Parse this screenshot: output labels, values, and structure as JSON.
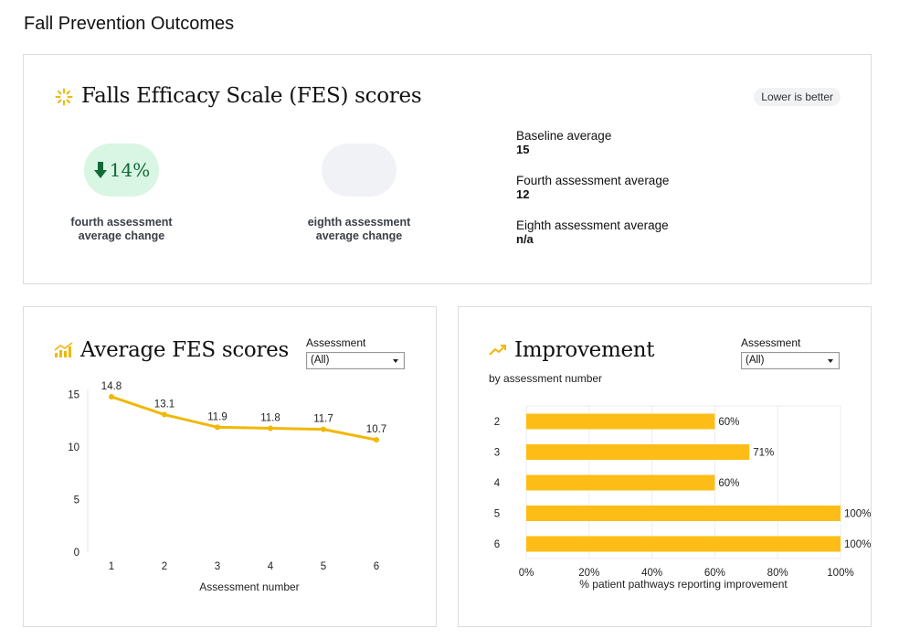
{
  "page": {
    "title": "Fall Prevention Outcomes"
  },
  "fes_card": {
    "heading": "Falls Efficacy Scale (FES) scores",
    "note": "Lower is better",
    "kpis": [
      {
        "value": "14%",
        "direction": "down",
        "caption_line1": "fourth assessment",
        "caption_line2": "average change"
      },
      {
        "value": "",
        "caption_line1": "eighth assessment",
        "caption_line2": "average change"
      }
    ],
    "stats": [
      {
        "label": "Baseline average",
        "value": "15"
      },
      {
        "label": "Fourth assessment average",
        "value": "12"
      },
      {
        "label": "Eighth assessment average",
        "value": "n/a"
      }
    ],
    "colors": {
      "accent": "#f2b705",
      "positive_bg": "#d9f5e3",
      "positive_text": "#0f6a37"
    }
  },
  "avg_card": {
    "heading": "Average FES scores",
    "filter_label": "Assessment",
    "filter_value": "(All)",
    "icon": "bar-chart-icon"
  },
  "imp_card": {
    "heading": "Improvement",
    "subtitle": "by assessment number",
    "filter_label": "Assessment",
    "filter_value": "(All)",
    "icon": "trend-up-icon"
  },
  "chart_data": [
    {
      "type": "line",
      "x": [
        1,
        2,
        3,
        4,
        5,
        6
      ],
      "values": [
        14.8,
        13.1,
        11.9,
        11.8,
        11.7,
        10.7
      ],
      "data_labels": [
        "14.8",
        "13.1",
        "11.9",
        "11.8",
        "11.7",
        "10.7"
      ],
      "xlabel": "Assessment number",
      "ylabel": "",
      "yticks": [
        "0",
        "5",
        "10",
        "15"
      ],
      "ylim": [
        0,
        15.5
      ],
      "color": "#f2b705",
      "grid": false
    },
    {
      "type": "bar",
      "orientation": "horizontal",
      "categories": [
        "2",
        "3",
        "4",
        "5",
        "6"
      ],
      "values": [
        60,
        71,
        60,
        100,
        100
      ],
      "data_labels": [
        "60%",
        "71%",
        "60%",
        "100%",
        "100%"
      ],
      "xlabel": "% patient pathways reporting improvement",
      "xticks": [
        "0%",
        "20%",
        "40%",
        "60%",
        "80%",
        "100%"
      ],
      "xlim": [
        0,
        100
      ],
      "color": "#fdbd16",
      "grid": true
    }
  ]
}
